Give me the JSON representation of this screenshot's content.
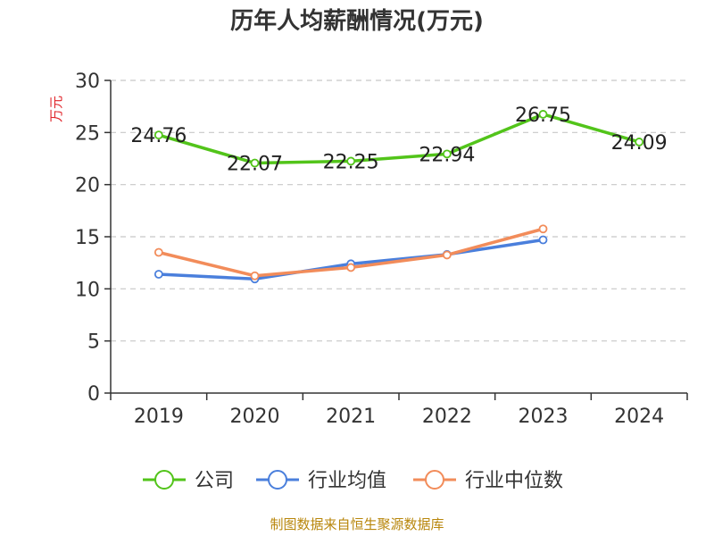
{
  "chart_data": {
    "type": "line",
    "title": "历年人均薪酬情况(万元)",
    "ylabel": "万元",
    "xlabel": "",
    "categories": [
      "2019",
      "2020",
      "2021",
      "2022",
      "2023",
      "2024"
    ],
    "ylim": [
      0,
      30
    ],
    "yticks": [
      0,
      5,
      10,
      15,
      20,
      25,
      30
    ],
    "grid": true,
    "legend_position": "bottom",
    "series": [
      {
        "name": "公司",
        "color": "#52c41a",
        "values": [
          24.76,
          22.07,
          22.25,
          22.94,
          26.75,
          24.09
        ],
        "labels": [
          "24.76",
          "22.07",
          "22.25",
          "22.94",
          "26.75",
          "24.09"
        ]
      },
      {
        "name": "行业均值",
        "color": "#4a7fdc",
        "values": [
          11.4,
          10.95,
          12.4,
          13.3,
          14.7,
          null
        ]
      },
      {
        "name": "行业中位数",
        "color": "#f28c5a",
        "values": [
          13.5,
          11.25,
          12.05,
          13.25,
          15.75,
          null
        ]
      }
    ]
  },
  "footer": {
    "source": "制图数据来自恒生聚源数据库"
  }
}
